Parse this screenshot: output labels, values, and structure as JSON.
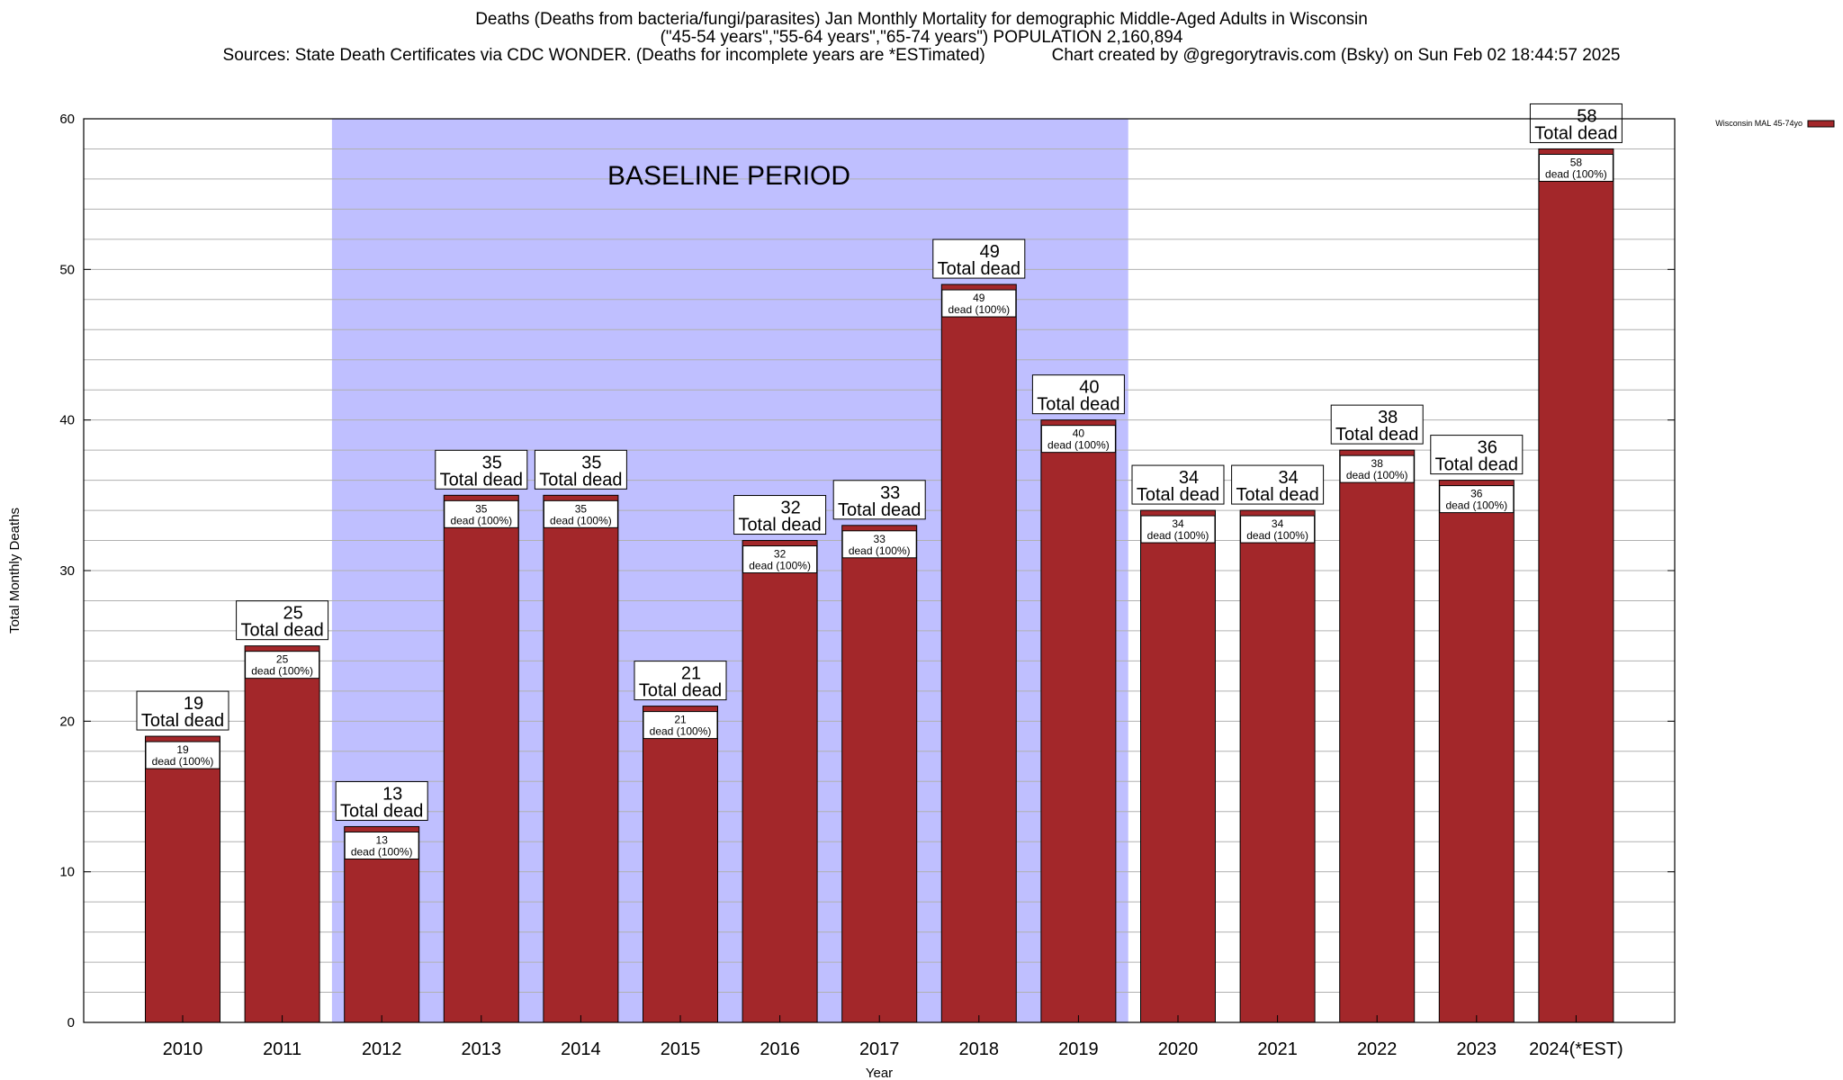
{
  "title": {
    "line1": "Deaths (Deaths from bacteria/fungi/parasites) Jan Monthly Mortality for demographic Middle-Aged Adults in Wisconsin",
    "line2": "(\"45-54 years\",\"55-64 years\",\"65-74 years\") POPULATION 2,160,894",
    "line3": "Sources: State Death Certificates via CDC WONDER. (Deaths for incomplete years are *ESTimated)              Chart created by @gregorytravis.com (Bsky) on Sun Feb 02 18:44:57 2025"
  },
  "chart_data": {
    "type": "bar",
    "categories": [
      "2010",
      "2011",
      "2012",
      "2013",
      "2014",
      "2015",
      "2016",
      "2017",
      "2018",
      "2019",
      "2020",
      "2021",
      "2022",
      "2023",
      "2024(*EST)"
    ],
    "series": [
      {
        "name": "Wisconsin MAL 45-74yo",
        "values": [
          19,
          25,
          13,
          35,
          35,
          21,
          32,
          33,
          49,
          40,
          34,
          34,
          38,
          36,
          58
        ]
      }
    ],
    "xlabel": "Year",
    "ylabel": "Total Monthly Deaths",
    "ylim": [
      0,
      60
    ],
    "yticks": [
      0,
      10,
      20,
      30,
      40,
      50,
      60
    ],
    "minor_step": 2,
    "grid": true,
    "legend_position": "top-right",
    "top_label_text": "Total dead",
    "inner_label_text": "dead (100%)",
    "baseline_region": {
      "label": "BASELINE PERIOD",
      "start": "2012",
      "end": "2019"
    },
    "colors": {
      "bar": "#a3272a",
      "bar_stroke": "#000000",
      "baseline": "#bfbfff",
      "grid": "#b0b0b0"
    }
  }
}
